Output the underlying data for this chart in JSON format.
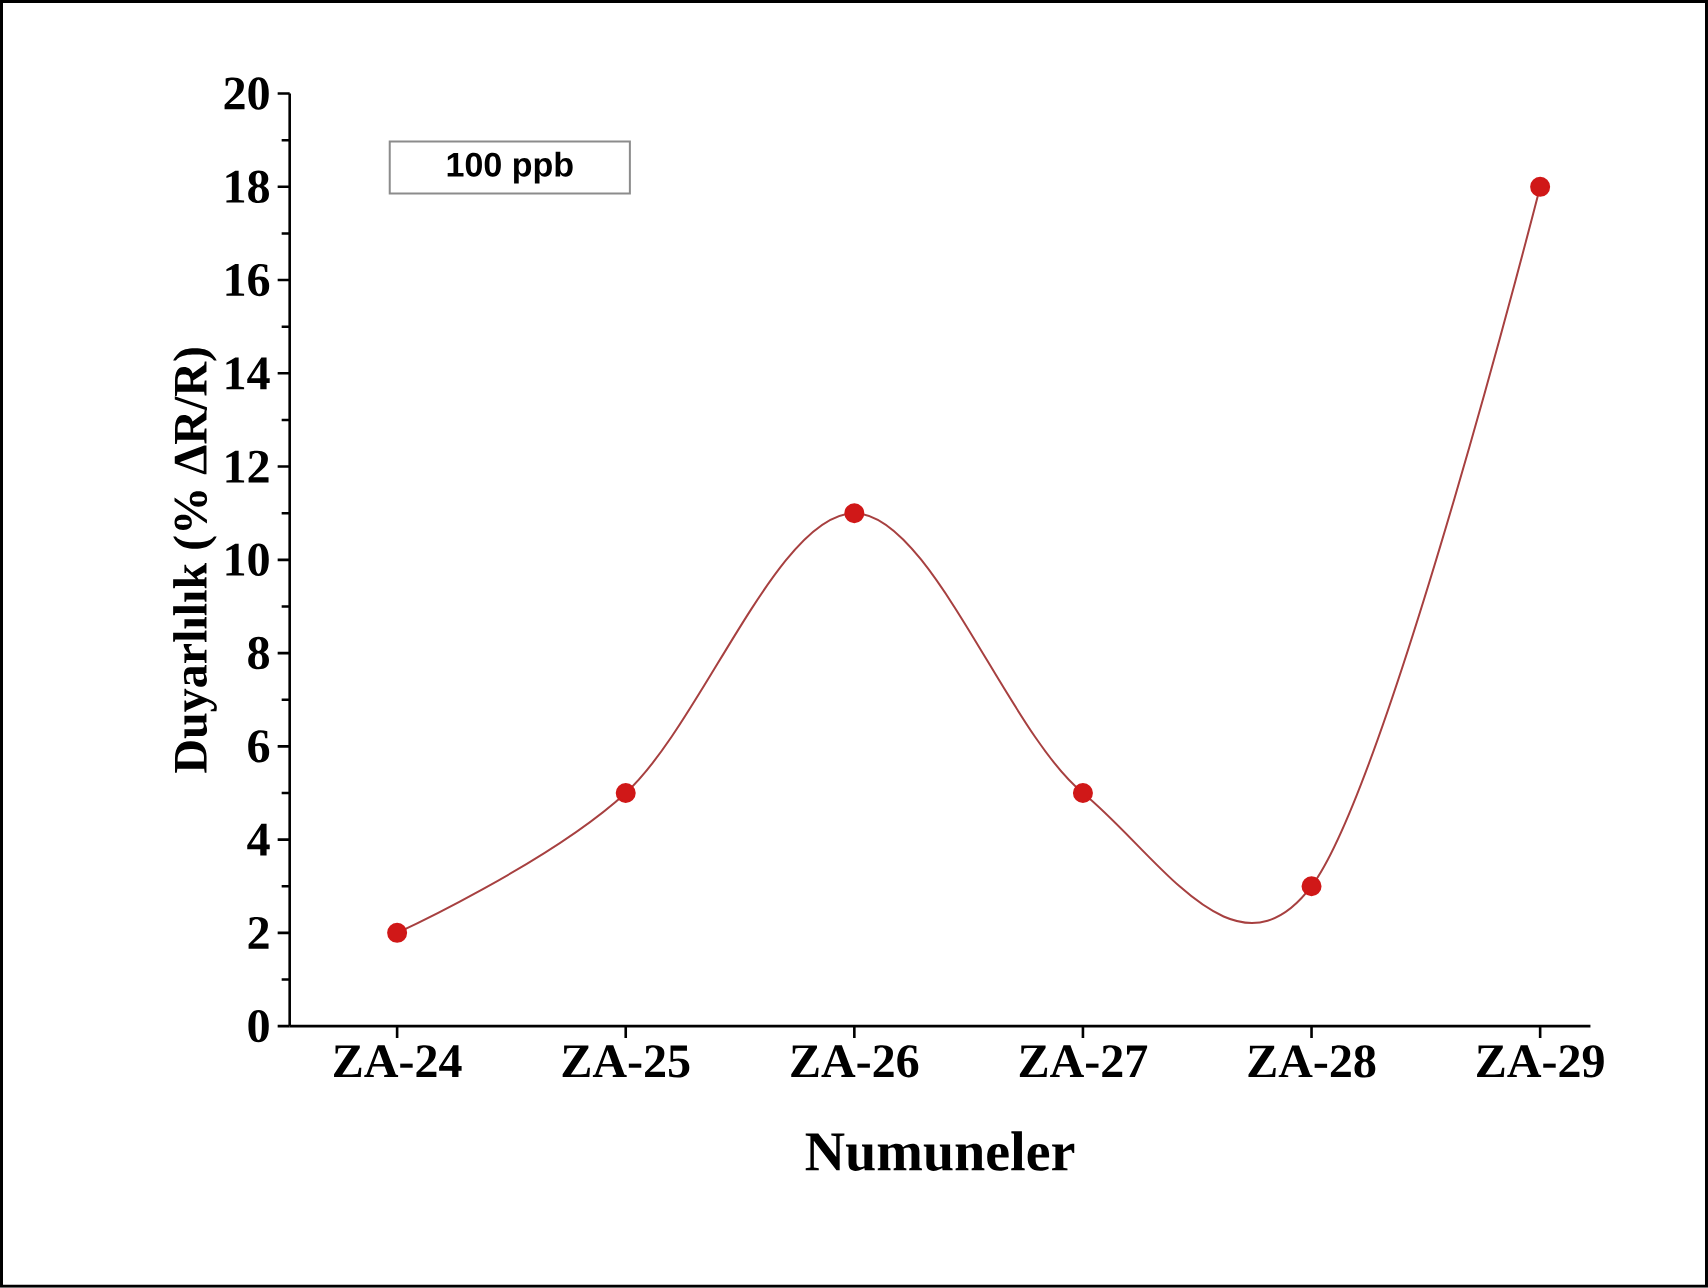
{
  "chart_data": {
    "type": "line",
    "xlabel": "Numuneler",
    "ylabel": "Duyarlılık    (% ΔR/R)",
    "categories": [
      "ZA-24",
      "ZA-25",
      "ZA-26",
      "ZA-27",
      "ZA-28",
      "ZA-29"
    ],
    "series": [
      {
        "color": "#d01818",
        "values": [
          2,
          5,
          11,
          5,
          3,
          18
        ]
      }
    ],
    "ylim": [
      0,
      20
    ],
    "yticks": [
      0,
      2,
      4,
      6,
      8,
      10,
      12,
      14,
      16,
      18,
      20
    ],
    "marker": "circle",
    "line_style": "solid",
    "grid": false,
    "annotations": [
      "100 ppb"
    ]
  }
}
